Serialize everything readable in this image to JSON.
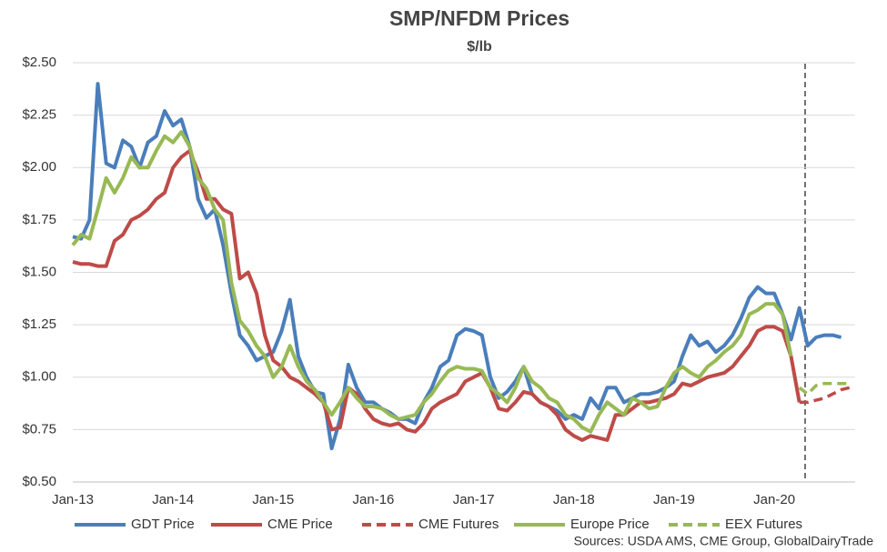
{
  "chart_data": {
    "type": "line",
    "title": "SMP/NFDM Prices",
    "subtitle": "$/lb",
    "categories": [
      "Jan-13",
      null,
      null,
      null,
      null,
      null,
      null,
      null,
      null,
      null,
      null,
      null,
      "Jan-14",
      null,
      null,
      null,
      null,
      null,
      null,
      null,
      null,
      null,
      null,
      null,
      "Jan-15",
      null,
      null,
      null,
      null,
      null,
      null,
      null,
      null,
      null,
      null,
      null,
      "Jan-16",
      null,
      null,
      null,
      null,
      null,
      null,
      null,
      null,
      null,
      null,
      null,
      "Jan-17",
      null,
      null,
      null,
      null,
      null,
      null,
      null,
      null,
      null,
      null,
      null,
      "Jan-18",
      null,
      null,
      null,
      null,
      null,
      null,
      null,
      null,
      null,
      null,
      null,
      "Jan-19",
      null,
      null,
      null,
      null,
      null,
      null,
      null,
      null,
      null,
      null,
      null,
      "Jan-20",
      null,
      null,
      null,
      null,
      null,
      null,
      null,
      null,
      null
    ],
    "series": [
      {
        "name": "GDT Price",
        "color": "#4a7ebb",
        "dashed": false,
        "values": [
          1.67,
          1.66,
          1.75,
          2.4,
          2.02,
          2.0,
          2.13,
          2.1,
          2.0,
          2.12,
          2.15,
          2.27,
          2.2,
          2.23,
          2.1,
          1.85,
          1.76,
          1.8,
          1.63,
          1.4,
          1.2,
          1.15,
          1.08,
          1.1,
          1.12,
          1.22,
          1.37,
          1.1,
          1.0,
          0.93,
          0.92,
          0.66,
          0.8,
          1.06,
          0.95,
          0.88,
          0.88,
          0.85,
          0.83,
          0.8,
          0.8,
          0.78,
          0.88,
          0.95,
          1.05,
          1.08,
          1.2,
          1.23,
          1.22,
          1.2,
          1.0,
          0.9,
          0.93,
          0.98,
          1.05,
          0.92,
          0.88,
          0.86,
          0.84,
          0.8,
          0.82,
          0.8,
          0.9,
          0.85,
          0.95,
          0.95,
          0.88,
          0.9,
          0.92,
          0.92,
          0.93,
          0.95,
          0.98,
          1.1,
          1.2,
          1.15,
          1.17,
          1.12,
          1.15,
          1.2,
          1.28,
          1.38,
          1.43,
          1.4,
          1.4,
          1.3,
          1.18,
          1.33,
          1.15,
          1.19,
          1.2,
          1.2,
          1.19,
          null
        ]
      },
      {
        "name": "CME Price",
        "color": "#be4b48",
        "dashed": false,
        "values": [
          1.55,
          1.54,
          1.54,
          1.53,
          1.53,
          1.65,
          1.68,
          1.75,
          1.77,
          1.8,
          1.85,
          1.88,
          2.0,
          2.05,
          2.08,
          1.98,
          1.85,
          1.85,
          1.8,
          1.78,
          1.47,
          1.5,
          1.4,
          1.2,
          1.08,
          1.05,
          1.0,
          0.98,
          0.95,
          0.92,
          0.88,
          0.75,
          0.76,
          0.95,
          0.92,
          0.85,
          0.8,
          0.78,
          0.77,
          0.78,
          0.75,
          0.74,
          0.78,
          0.85,
          0.88,
          0.9,
          0.92,
          0.98,
          1.0,
          1.02,
          0.95,
          0.85,
          0.84,
          0.88,
          0.93,
          0.92,
          0.88,
          0.86,
          0.82,
          0.75,
          0.72,
          0.7,
          0.72,
          0.71,
          0.7,
          0.82,
          0.82,
          0.85,
          0.88,
          0.88,
          0.89,
          0.9,
          0.92,
          0.97,
          0.96,
          0.98,
          1.0,
          1.01,
          1.02,
          1.05,
          1.1,
          1.15,
          1.22,
          1.24,
          1.24,
          1.22,
          1.1,
          0.88,
          null,
          null,
          null,
          null,
          null,
          null
        ]
      },
      {
        "name": "CME Futures",
        "color": "#be4b48",
        "dashed": true,
        "values": [
          null,
          null,
          null,
          null,
          null,
          null,
          null,
          null,
          null,
          null,
          null,
          null,
          null,
          null,
          null,
          null,
          null,
          null,
          null,
          null,
          null,
          null,
          null,
          null,
          null,
          null,
          null,
          null,
          null,
          null,
          null,
          null,
          null,
          null,
          null,
          null,
          null,
          null,
          null,
          null,
          null,
          null,
          null,
          null,
          null,
          null,
          null,
          null,
          null,
          null,
          null,
          null,
          null,
          null,
          null,
          null,
          null,
          null,
          null,
          null,
          null,
          null,
          null,
          null,
          null,
          null,
          null,
          null,
          null,
          null,
          null,
          null,
          null,
          null,
          null,
          null,
          null,
          null,
          null,
          null,
          null,
          null,
          null,
          null,
          null,
          null,
          null,
          0.88,
          0.88,
          0.89,
          0.9,
          0.92,
          0.94,
          0.95
        ]
      },
      {
        "name": "Europe Price",
        "color": "#98b954",
        "dashed": false,
        "values": [
          1.63,
          1.68,
          1.66,
          1.8,
          1.95,
          1.88,
          1.95,
          2.05,
          2.0,
          2.0,
          2.08,
          2.15,
          2.12,
          2.17,
          2.1,
          1.95,
          1.9,
          1.8,
          1.75,
          1.45,
          1.27,
          1.22,
          1.15,
          1.1,
          1.0,
          1.05,
          1.15,
          1.05,
          0.98,
          0.94,
          0.88,
          0.82,
          0.88,
          0.95,
          0.9,
          0.86,
          0.86,
          0.85,
          0.82,
          0.8,
          0.81,
          0.82,
          0.88,
          0.92,
          0.98,
          1.03,
          1.05,
          1.04,
          1.04,
          1.03,
          0.95,
          0.92,
          0.88,
          0.95,
          1.05,
          0.98,
          0.95,
          0.9,
          0.88,
          0.82,
          0.8,
          0.76,
          0.74,
          0.82,
          0.88,
          0.85,
          0.82,
          0.9,
          0.88,
          0.85,
          0.86,
          0.95,
          1.02,
          1.05,
          1.02,
          1.0,
          1.05,
          1.08,
          1.12,
          1.15,
          1.2,
          1.3,
          1.32,
          1.35,
          1.35,
          1.3,
          1.1,
          null,
          null,
          null,
          null,
          null,
          null,
          null
        ]
      },
      {
        "name": "EEX Futures",
        "color": "#98b954",
        "dashed": true,
        "values": [
          null,
          null,
          null,
          null,
          null,
          null,
          null,
          null,
          null,
          null,
          null,
          null,
          null,
          null,
          null,
          null,
          null,
          null,
          null,
          null,
          null,
          null,
          null,
          null,
          null,
          null,
          null,
          null,
          null,
          null,
          null,
          null,
          null,
          null,
          null,
          null,
          null,
          null,
          null,
          null,
          null,
          null,
          null,
          null,
          null,
          null,
          null,
          null,
          null,
          null,
          null,
          null,
          null,
          null,
          null,
          null,
          null,
          null,
          null,
          null,
          null,
          null,
          null,
          null,
          null,
          null,
          null,
          null,
          null,
          null,
          null,
          null,
          null,
          null,
          null,
          null,
          null,
          null,
          null,
          null,
          null,
          null,
          null,
          null,
          null,
          null,
          null,
          0.95,
          0.92,
          0.96,
          0.97,
          0.97,
          0.97,
          0.97
        ]
      }
    ],
    "ylim": [
      0.5,
      2.5
    ],
    "yticks": [
      {
        "value": 0.5,
        "label": "$0.50"
      },
      {
        "value": 0.75,
        "label": "$0.75"
      },
      {
        "value": 1.0,
        "label": "$1.00"
      },
      {
        "value": 1.25,
        "label": "$1.25"
      },
      {
        "value": 1.5,
        "label": "$1.50"
      },
      {
        "value": 1.75,
        "label": "$1.75"
      },
      {
        "value": 2.0,
        "label": "$2.00"
      },
      {
        "value": 2.25,
        "label": "$2.25"
      },
      {
        "value": 2.5,
        "label": "$2.50"
      }
    ],
    "grid": true,
    "legend": "bottom",
    "source": "Sources:  USDA AMS, CME Group, GlobalDairyTrade"
  }
}
